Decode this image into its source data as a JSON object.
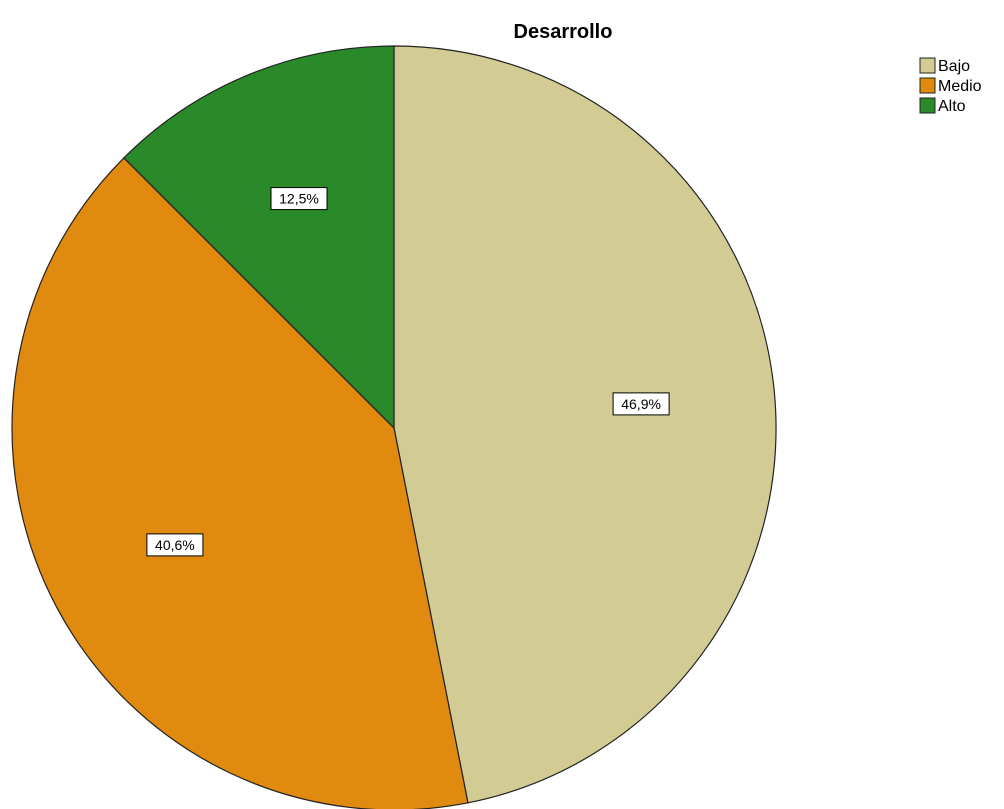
{
  "chart_data": {
    "type": "pie",
    "title": "Desarrollo",
    "categories": [
      "Bajo",
      "Medio",
      "Alto"
    ],
    "values": [
      46.9,
      40.6,
      12.5
    ],
    "data_labels": [
      "46,9%",
      "40,6%",
      "12,5%"
    ],
    "colors": [
      "#d2cb93",
      "#e08a10",
      "#2a8a2a"
    ],
    "legend_position": "top-right",
    "start_angle": "12 o'clock",
    "direction": "clockwise"
  }
}
